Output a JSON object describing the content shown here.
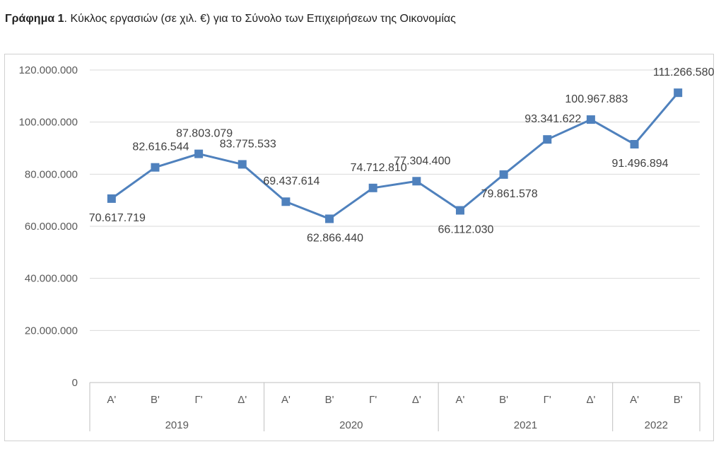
{
  "caption": {
    "bold": "Γράφημα 1",
    "rest": ". Κύκλος εργασιών (σε χιλ. €) για το Σύνολο των Επιχειρήσεων της Οικονομίας"
  },
  "chart_data": {
    "type": "line",
    "title": "",
    "ylim": [
      0,
      120000000
    ],
    "yticks": [
      0,
      20000000,
      40000000,
      60000000,
      80000000,
      100000000,
      120000000
    ],
    "ytick_labels": [
      "0",
      "20.000.000",
      "40.000.000",
      "60.000.000",
      "80.000.000",
      "100.000.000",
      "120.000.000"
    ],
    "grid": true,
    "legend": "none",
    "line_color": "#4f81bd",
    "categories": [
      "Α'",
      "Β'",
      "Γ'",
      "Δ'",
      "Α'",
      "Β'",
      "Γ'",
      "Δ'",
      "Α'",
      "Β'",
      "Γ'",
      "Δ'",
      "Α'",
      "Β'"
    ],
    "groups": [
      {
        "label": "2019",
        "count": 4
      },
      {
        "label": "2020",
        "count": 4
      },
      {
        "label": "2021",
        "count": 4
      },
      {
        "label": "2022",
        "count": 2
      }
    ],
    "series": [
      {
        "values": [
          70617719,
          82616544,
          87803079,
          83775533,
          69437614,
          62866440,
          74712810,
          77304400,
          66112030,
          79861578,
          93341622,
          100967883,
          91496894,
          111266580
        ],
        "labels": [
          "70.617.719",
          "82.616.544",
          "87.803.079",
          "83.775.533",
          "69.437.614",
          "62.866.440",
          "74.712.810",
          "77.304.400",
          "66.112.030",
          "79.861.578",
          "93.341.622",
          "100.967.883",
          "91.496.894",
          "111.266.580"
        ],
        "label_pos": [
          "below",
          "above",
          "above",
          "above",
          "above",
          "below",
          "above",
          "above",
          "below",
          "below",
          "above",
          "above",
          "below",
          "above"
        ]
      }
    ]
  }
}
